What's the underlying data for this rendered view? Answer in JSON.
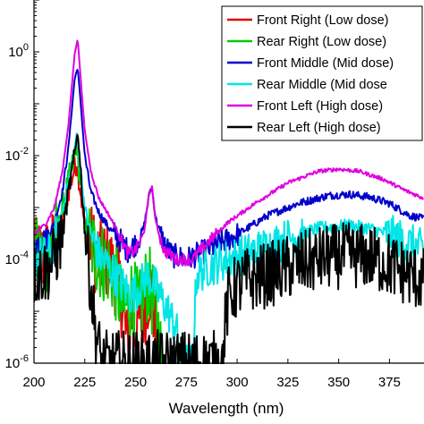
{
  "chart_data": {
    "type": "line",
    "title": "",
    "xlabel": "Wavelength (nm)",
    "ylabel": "",
    "xlim": [
      200,
      392
    ],
    "ylim": [
      1e-06,
      10
    ],
    "yscale": "log",
    "grid": false,
    "legend_position": "top-right",
    "xticks": [
      200,
      225,
      250,
      275,
      300,
      325,
      350,
      375
    ],
    "yticks": [
      {
        "value": 1e-06,
        "base": "10",
        "exp": "-6"
      },
      {
        "value": 0.0001,
        "base": "10",
        "exp": "-4"
      },
      {
        "value": 0.01,
        "base": "10",
        "exp": "-2"
      },
      {
        "value": 1,
        "base": "10",
        "exp": "0"
      }
    ],
    "series": [
      {
        "name": "Front Right (Low dose)",
        "color": "#e00000",
        "noise": 1.0,
        "points": [
          [
            200,
            0.0001
          ],
          [
            208,
            0.00012
          ],
          [
            212,
            0.0003
          ],
          [
            215,
            0.001
          ],
          [
            218,
            0.003
          ],
          [
            221,
            0.008
          ],
          [
            223,
            0.002
          ],
          [
            225,
            0.0004
          ],
          [
            228,
            0.0002
          ],
          [
            232,
            0.0001
          ],
          [
            236,
            0.0001
          ],
          [
            240,
            5e-05
          ],
          [
            243,
            2e-05
          ],
          [
            246,
            2e-06
          ],
          [
            248,
            1e-05
          ],
          [
            250,
            5e-06
          ],
          [
            254,
            1e-05
          ],
          [
            257,
            3e-05
          ],
          [
            259,
            8e-06
          ],
          [
            261,
            1e-06
          ]
        ]
      },
      {
        "name": "Rear Right (Low dose)",
        "color": "#00cc00",
        "noise": 1.0,
        "points": [
          [
            200,
            0.0001
          ],
          [
            208,
            0.00015
          ],
          [
            212,
            0.0004
          ],
          [
            215,
            0.0015
          ],
          [
            218,
            0.005
          ],
          [
            221,
            0.012
          ],
          [
            223,
            0.003
          ],
          [
            225,
            0.0005
          ],
          [
            228,
            0.0002
          ],
          [
            232,
            0.0001
          ],
          [
            236,
            8e-05
          ],
          [
            240,
            4e-05
          ],
          [
            244,
            1e-05
          ],
          [
            248,
            2e-05
          ],
          [
            252,
            1e-05
          ],
          [
            256,
            4e-05
          ],
          [
            258,
            2e-05
          ],
          [
            261,
            5e-06
          ],
          [
            263,
            1e-06
          ]
        ]
      },
      {
        "name": "Front Middle (Mid dose)",
        "color": "#0000cc",
        "noise": 0.3,
        "points": [
          [
            200,
            0.0002
          ],
          [
            206,
            0.00025
          ],
          [
            210,
            0.0005
          ],
          [
            214,
            0.002
          ],
          [
            217,
            0.015
          ],
          [
            220,
            0.3
          ],
          [
            221.5,
            0.5
          ],
          [
            223,
            0.1
          ],
          [
            225,
            0.01
          ],
          [
            228,
            0.002
          ],
          [
            232,
            0.0008
          ],
          [
            237,
            0.0004
          ],
          [
            242,
            0.00025
          ],
          [
            246,
            0.00015
          ],
          [
            250,
            0.0002
          ],
          [
            254,
            0.0004
          ],
          [
            257,
            0.002
          ],
          [
            258,
            0.0025
          ],
          [
            260,
            0.0006
          ],
          [
            264,
            0.0002
          ],
          [
            268,
            0.00012
          ],
          [
            275,
            0.0001
          ],
          [
            285,
            0.00015
          ],
          [
            300,
            0.0003
          ],
          [
            315,
            0.0007
          ],
          [
            330,
            0.0012
          ],
          [
            345,
            0.0017
          ],
          [
            355,
            0.0018
          ],
          [
            365,
            0.0016
          ],
          [
            375,
            0.0012
          ],
          [
            385,
            0.0007
          ],
          [
            392,
            0.0006
          ]
        ]
      },
      {
        "name": "Rear Middle (Mid dose",
        "color": "#00e5e5",
        "noise": 0.5,
        "points": [
          [
            200,
            0.0001
          ],
          [
            208,
            0.00013
          ],
          [
            212,
            0.0004
          ],
          [
            216,
            0.002
          ],
          [
            219,
            0.008
          ],
          [
            221,
            0.025
          ],
          [
            223,
            0.005
          ],
          [
            225,
            0.001
          ],
          [
            228,
            0.0003
          ],
          [
            232,
            0.00012
          ],
          [
            236,
            8e-05
          ],
          [
            240,
            5e-05
          ],
          [
            244,
            3e-05
          ],
          [
            248,
            2e-05
          ],
          [
            252,
            3e-05
          ],
          [
            256,
            5e-05
          ],
          [
            258,
            4e-05
          ],
          [
            262,
            2e-05
          ],
          [
            266,
            1e-05
          ],
          [
            270,
            5e-06
          ],
          [
            272,
            1e-06
          ],
          [
            278,
            1e-06
          ],
          [
            280,
            5e-05
          ],
          [
            285,
            7e-05
          ],
          [
            295,
            0.0001
          ],
          [
            310,
            0.00015
          ],
          [
            325,
            0.00025
          ],
          [
            340,
            0.0004
          ],
          [
            355,
            0.00045
          ],
          [
            365,
            0.0004
          ],
          [
            375,
            0.0003
          ],
          [
            385,
            0.0002
          ],
          [
            392,
            0.00015
          ]
        ]
      },
      {
        "name": "Front Left (High dose)",
        "color": "#e000e0",
        "noise": 0.15,
        "points": [
          [
            200,
            0.0003
          ],
          [
            206,
            0.0005
          ],
          [
            210,
            0.001
          ],
          [
            214,
            0.005
          ],
          [
            217,
            0.04
          ],
          [
            220,
            0.9
          ],
          [
            221.5,
            1.8
          ],
          [
            223,
            0.3
          ],
          [
            225,
            0.03
          ],
          [
            228,
            0.005
          ],
          [
            232,
            0.0015
          ],
          [
            237,
            0.0007
          ],
          [
            242,
            0.0003
          ],
          [
            246,
            0.00013
          ],
          [
            250,
            0.00015
          ],
          [
            254,
            0.0003
          ],
          [
            257,
            0.0022
          ],
          [
            258,
            0.0026
          ],
          [
            260,
            0.0005
          ],
          [
            264,
            0.00015
          ],
          [
            270,
            0.0001
          ],
          [
            278,
            0.0001
          ],
          [
            285,
            0.0002
          ],
          [
            295,
            0.0005
          ],
          [
            310,
            0.0013
          ],
          [
            325,
            0.003
          ],
          [
            340,
            0.005
          ],
          [
            350,
            0.0055
          ],
          [
            360,
            0.005
          ],
          [
            372,
            0.0035
          ],
          [
            382,
            0.0022
          ],
          [
            392,
            0.0015
          ]
        ]
      },
      {
        "name": "Rear Left (High dose)",
        "color": "#000000",
        "noise": 0.8,
        "points": [
          [
            200,
            5e-05
          ],
          [
            206,
            6e-05
          ],
          [
            210,
            0.0001
          ],
          [
            214,
            0.0003
          ],
          [
            217,
            0.002
          ],
          [
            220,
            0.01
          ],
          [
            221.5,
            0.03
          ],
          [
            223,
            0.005
          ],
          [
            225,
            0.0004
          ],
          [
            228,
            3e-05
          ],
          [
            230,
            5e-06
          ],
          [
            232,
            2e-06
          ],
          [
            233,
            1e-06
          ],
          [
            293,
            1e-06
          ],
          [
            294,
            5e-06
          ],
          [
            296,
            2e-05
          ],
          [
            300,
            3e-05
          ],
          [
            305,
            4e-05
          ],
          [
            315,
            5e-05
          ],
          [
            330,
            8e-05
          ],
          [
            345,
            0.00011
          ],
          [
            355,
            0.00012
          ],
          [
            365,
            0.00011
          ],
          [
            375,
            8e-05
          ],
          [
            385,
            5e-05
          ],
          [
            392,
            4e-05
          ]
        ]
      }
    ]
  }
}
